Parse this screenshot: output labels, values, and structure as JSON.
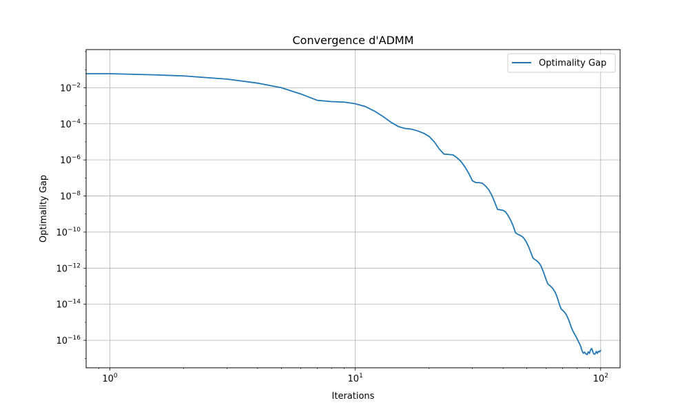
{
  "chart_data": {
    "type": "line",
    "title": "Convergence d'ADMM",
    "xlabel": "Iterations",
    "ylabel": "Optimality Gap",
    "xscale": "log",
    "yscale": "log",
    "xlim": [
      0.8,
      120
    ],
    "ylim": [
      3e-18,
      1.3
    ],
    "grid": true,
    "legend_position": "top-right",
    "x_ticks": [
      {
        "value": 1,
        "base": "10",
        "exp": "0"
      },
      {
        "value": 10,
        "base": "10",
        "exp": "1"
      },
      {
        "value": 100,
        "base": "10",
        "exp": "2"
      }
    ],
    "y_ticks": [
      {
        "value": 0.01,
        "base": "10",
        "exp": "−2"
      },
      {
        "value": 0.0001,
        "base": "10",
        "exp": "−4"
      },
      {
        "value": 1e-06,
        "base": "10",
        "exp": "−6"
      },
      {
        "value": 1e-08,
        "base": "10",
        "exp": "−8"
      },
      {
        "value": 1e-10,
        "base": "10",
        "exp": "−10"
      },
      {
        "value": 1e-12,
        "base": "10",
        "exp": "−12"
      },
      {
        "value": 1e-14,
        "base": "10",
        "exp": "−14"
      },
      {
        "value": 1e-16,
        "base": "10",
        "exp": "−16"
      }
    ],
    "series": [
      {
        "name": "Optimality Gap",
        "color": "#1f77b4",
        "points": [
          [
            0.8,
            0.06
          ],
          [
            1,
            0.06
          ],
          [
            1.5,
            0.052
          ],
          [
            2,
            0.045
          ],
          [
            3,
            0.03
          ],
          [
            4,
            0.018
          ],
          [
            5,
            0.01
          ],
          [
            6,
            0.0045
          ],
          [
            7,
            0.002
          ],
          [
            8,
            0.0017
          ],
          [
            9,
            0.0016
          ],
          [
            10,
            0.0013
          ],
          [
            11,
            0.0009
          ],
          [
            12,
            0.0005
          ],
          [
            13,
            0.00025
          ],
          [
            14,
            0.00012
          ],
          [
            15,
            7e-05
          ],
          [
            16,
            5.5e-05
          ],
          [
            17,
            5e-05
          ],
          [
            18,
            4e-05
          ],
          [
            19,
            3e-05
          ],
          [
            20,
            2e-05
          ],
          [
            21,
            1e-05
          ],
          [
            22,
            4e-06
          ],
          [
            23,
            2.1e-06
          ],
          [
            24,
            2e-06
          ],
          [
            25,
            1.9e-06
          ],
          [
            26,
            1.3e-06
          ],
          [
            27,
            8e-07
          ],
          [
            28,
            4e-07
          ],
          [
            29,
            1.8e-07
          ],
          [
            30,
            7e-08
          ],
          [
            31,
            5.5e-08
          ],
          [
            32,
            5.5e-08
          ],
          [
            33,
            5e-08
          ],
          [
            34,
            3.5e-08
          ],
          [
            35,
            2.2e-08
          ],
          [
            36,
            1.1e-08
          ],
          [
            37,
            4.5e-09
          ],
          [
            38,
            1.8e-09
          ],
          [
            39,
            1.7e-09
          ],
          [
            40,
            1.6e-09
          ],
          [
            41,
            1.3e-09
          ],
          [
            42,
            8e-10
          ],
          [
            43,
            4.5e-10
          ],
          [
            44,
            2.2e-10
          ],
          [
            45,
            9e-11
          ],
          [
            46,
            7.5e-11
          ],
          [
            47,
            6.5e-11
          ],
          [
            48,
            5.5e-11
          ],
          [
            49,
            4e-11
          ],
          [
            50,
            2.5e-11
          ],
          [
            51,
            1.4e-11
          ],
          [
            52,
            7e-12
          ],
          [
            53,
            3.6e-12
          ],
          [
            54,
            3e-12
          ],
          [
            55,
            2.5e-12
          ],
          [
            56,
            2e-12
          ],
          [
            57,
            1.4e-12
          ],
          [
            58,
            8e-13
          ],
          [
            59,
            4.3e-13
          ],
          [
            60,
            2.2e-13
          ],
          [
            61,
            1.3e-13
          ],
          [
            62,
            1.1e-13
          ],
          [
            63,
            9e-14
          ],
          [
            64,
            7e-14
          ],
          [
            65,
            5e-14
          ],
          [
            66,
            3.2e-14
          ],
          [
            67,
            1.8e-14
          ],
          [
            68,
            9e-15
          ],
          [
            69,
            5.5e-15
          ],
          [
            70,
            4.6e-15
          ],
          [
            71,
            3.8e-15
          ],
          [
            72,
            3e-15
          ],
          [
            73,
            2.1e-15
          ],
          [
            74,
            1.4e-15
          ],
          [
            75,
            8.5e-16
          ],
          [
            76,
            5e-16
          ],
          [
            77,
            3.4e-16
          ],
          [
            78,
            2.4e-16
          ],
          [
            79,
            1.8e-16
          ],
          [
            80,
            1.3e-16
          ],
          [
            81,
            9e-17
          ],
          [
            82,
            6.5e-17
          ],
          [
            83,
            4.5e-17
          ],
          [
            84,
            2.6e-17
          ],
          [
            85,
            1.9e-17
          ],
          [
            86,
            2.2e-17
          ],
          [
            87,
            1.8e-17
          ],
          [
            88,
            1.6e-17
          ],
          [
            89,
            2.3e-17
          ],
          [
            90,
            1.9e-17
          ],
          [
            91,
            3e-17
          ],
          [
            92,
            3.5e-17
          ],
          [
            93,
            2.2e-17
          ],
          [
            94,
            1.7e-17
          ],
          [
            95,
            1.8e-17
          ],
          [
            96,
            2.4e-17
          ],
          [
            97,
            1.9e-17
          ],
          [
            98,
            2.5e-17
          ],
          [
            99,
            2.3e-17
          ],
          [
            100,
            2.8e-17
          ]
        ]
      }
    ]
  }
}
